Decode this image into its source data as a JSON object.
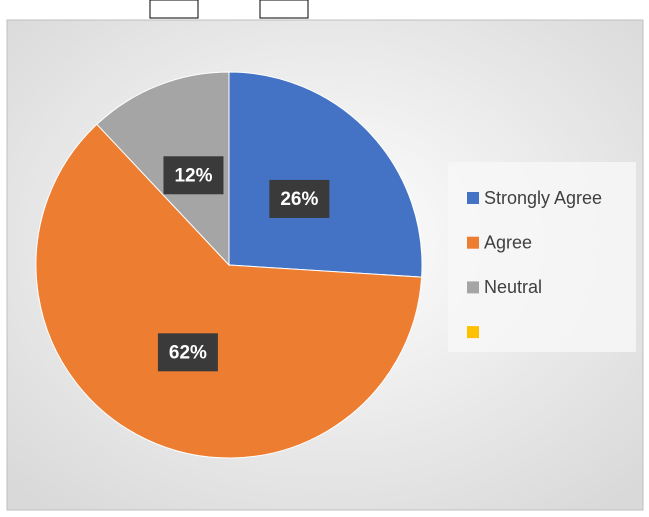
{
  "chart_data": {
    "type": "pie",
    "categories": [
      "Strongly Agree",
      "Agree",
      "Neutral",
      null
    ],
    "values": [
      26,
      62,
      12,
      0
    ],
    "value_labels": [
      "26%",
      "62%",
      "12%",
      null
    ],
    "colors": [
      "#4472c4",
      "#ed7d31",
      "#a5a5a5",
      "#ffc000"
    ],
    "legend": "right"
  }
}
